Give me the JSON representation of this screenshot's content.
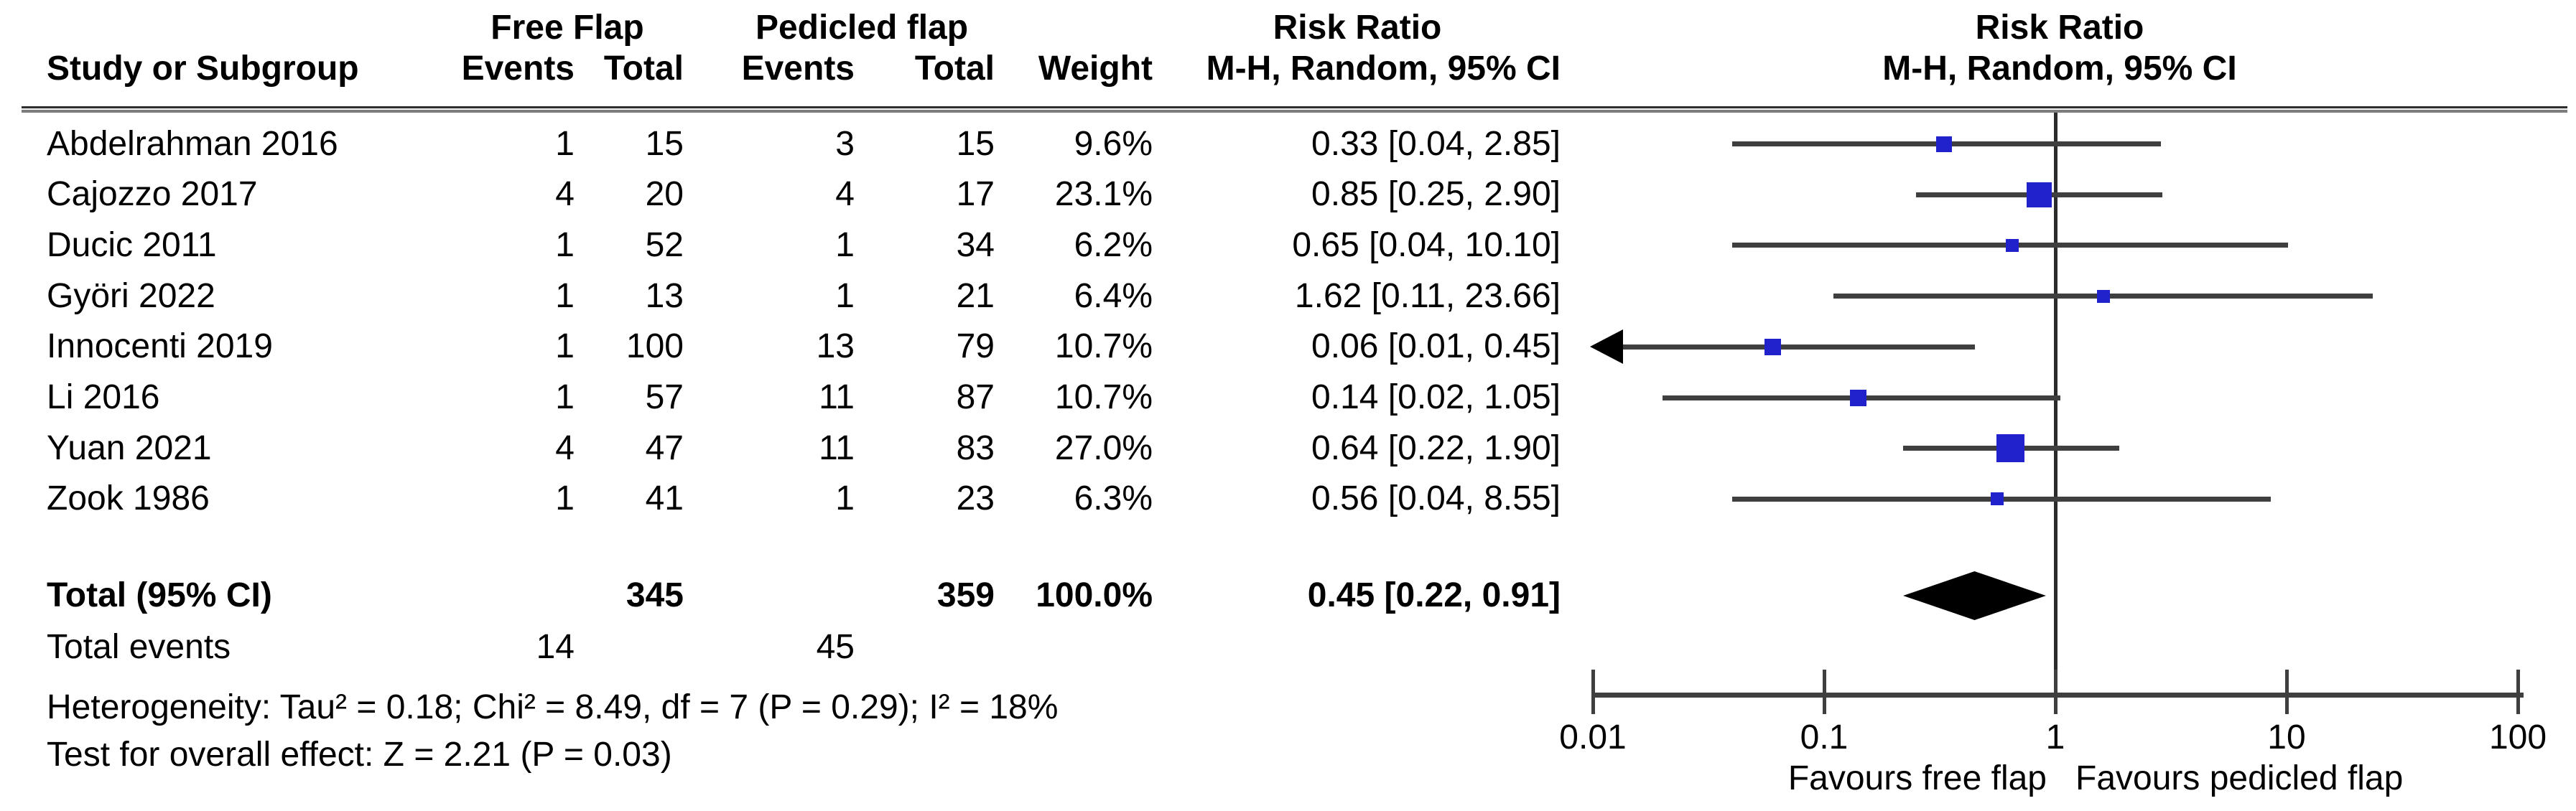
{
  "table": {
    "group_free": "Free Flap",
    "group_pedicled": "Pedicled flap",
    "col_study": "Study or Subgroup",
    "col_events_free": "Events",
    "col_total_free": "Total",
    "col_events_pedicled": "Events",
    "col_total_pedicled": "Total",
    "col_weight": "Weight",
    "col_rr_title": "Risk Ratio",
    "col_rr_sub": "M-H, Random, 95% CI"
  },
  "plot": {
    "title": "Risk Ratio",
    "subtitle": "M-H, Random, 95% CI",
    "favours_left": "Favours free flap",
    "favours_right": "Favours pedicled flap",
    "marker_color": "#2222cc",
    "line_color": "#3f3f3f",
    "diamond_color": "#000000"
  },
  "studies": [
    {
      "name": "Abdelrahman 2016",
      "ff_events": "1",
      "ff_total": "15",
      "pf_events": "3",
      "pf_total": "15",
      "weight": "9.6%",
      "rr_text": "0.33 [0.04, 2.85]"
    },
    {
      "name": "Cajozzo 2017",
      "ff_events": "4",
      "ff_total": "20",
      "pf_events": "4",
      "pf_total": "17",
      "weight": "23.1%",
      "rr_text": "0.85 [0.25, 2.90]"
    },
    {
      "name": "Ducic 2011",
      "ff_events": "1",
      "ff_total": "52",
      "pf_events": "1",
      "pf_total": "34",
      "weight": "6.2%",
      "rr_text": "0.65 [0.04, 10.10]"
    },
    {
      "name": "Györi 2022",
      "ff_events": "1",
      "ff_total": "13",
      "pf_events": "1",
      "pf_total": "21",
      "weight": "6.4%",
      "rr_text": "1.62 [0.11, 23.66]"
    },
    {
      "name": "Innocenti 2019",
      "ff_events": "1",
      "ff_total": "100",
      "pf_events": "13",
      "pf_total": "79",
      "weight": "10.7%",
      "rr_text": "0.06 [0.01, 0.45]"
    },
    {
      "name": "Li 2016",
      "ff_events": "1",
      "ff_total": "57",
      "pf_events": "11",
      "pf_total": "87",
      "weight": "10.7%",
      "rr_text": "0.14 [0.02, 1.05]"
    },
    {
      "name": "Yuan 2021",
      "ff_events": "4",
      "ff_total": "47",
      "pf_events": "11",
      "pf_total": "83",
      "weight": "27.0%",
      "rr_text": "0.64 [0.22, 1.90]"
    },
    {
      "name": "Zook 1986",
      "ff_events": "1",
      "ff_total": "41",
      "pf_events": "1",
      "pf_total": "23",
      "weight": "6.3%",
      "rr_text": "0.56 [0.04, 8.55]"
    }
  ],
  "totals": {
    "label": "Total (95% CI)",
    "ff_total": "345",
    "pf_total": "359",
    "weight": "100.0%",
    "rr_text": "0.45 [0.22, 0.91]",
    "events_label": "Total events",
    "ff_events": "14",
    "pf_events": "45"
  },
  "footnotes": {
    "heterogeneity": "Heterogeneity: Tau² = 0.18; Chi² = 8.49, df = 7 (P = 0.29); I² = 18%",
    "overall_effect": "Test for overall effect: Z = 2.21 (P = 0.03)"
  },
  "chart_data": {
    "type": "scatter",
    "subtype": "forest_plot",
    "effect_measure": "Risk Ratio (M-H, Random, 95% CI)",
    "x_scale": "log10",
    "x_range": [
      0.01,
      100
    ],
    "x_ticks": [
      0.01,
      0.1,
      1,
      10,
      100
    ],
    "x_tick_labels": [
      "0.01",
      "0.1",
      "1",
      "10",
      "100"
    ],
    "favours_left": "Favours free flap",
    "favours_right": "Favours pedicled flap",
    "studies": [
      {
        "name": "Abdelrahman 2016",
        "rr": 0.33,
        "ci_low": 0.04,
        "ci_high": 2.85,
        "weight_pct": 9.6
      },
      {
        "name": "Cajozzo 2017",
        "rr": 0.85,
        "ci_low": 0.25,
        "ci_high": 2.9,
        "weight_pct": 23.1
      },
      {
        "name": "Ducic 2011",
        "rr": 0.65,
        "ci_low": 0.04,
        "ci_high": 10.1,
        "weight_pct": 6.2
      },
      {
        "name": "Györi 2022",
        "rr": 1.62,
        "ci_low": 0.11,
        "ci_high": 23.66,
        "weight_pct": 6.4
      },
      {
        "name": "Innocenti 2019",
        "rr": 0.06,
        "ci_low": 0.01,
        "ci_high": 0.45,
        "weight_pct": 10.7,
        "arrow_left": true
      },
      {
        "name": "Li 2016",
        "rr": 0.14,
        "ci_low": 0.02,
        "ci_high": 1.05,
        "weight_pct": 10.7
      },
      {
        "name": "Yuan 2021",
        "rr": 0.64,
        "ci_low": 0.22,
        "ci_high": 1.9,
        "weight_pct": 27.0
      },
      {
        "name": "Zook 1986",
        "rr": 0.56,
        "ci_low": 0.04,
        "ci_high": 8.55,
        "weight_pct": 6.3
      }
    ],
    "total": {
      "label": "Total (95% CI)",
      "rr": 0.45,
      "ci_low": 0.22,
      "ci_high": 0.91,
      "weight_pct": 100.0,
      "heterogeneity": "Tau² = 0.18; Chi² = 8.49, df = 7 (P = 0.29); I² = 18%",
      "overall_effect": "Z = 2.21 (P = 0.03)"
    }
  }
}
